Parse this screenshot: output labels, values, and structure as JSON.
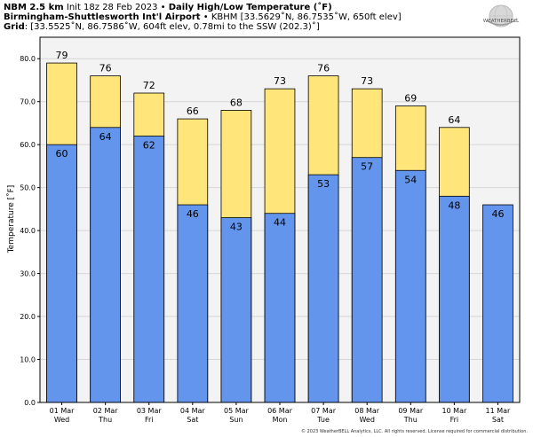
{
  "header": {
    "line1": {
      "bold1": "NBM 2.5 km",
      "text1": " Init 18z 28 Feb 2023 • ",
      "bold2": "Daily High/Low Temperature (˚F)"
    },
    "line2": {
      "bold": "Birmingham-Shuttlesworth Int'l Airport",
      "text": " • KBHM [33.5629˚N, 86.7535˚W, 650ft elev]"
    },
    "line3": {
      "bold": "Grid",
      "text": ": [33.5525˚N, 86.7586˚W, 604ft elev, 0.78mi to the SSW (202.3)˚]"
    }
  },
  "logo": {
    "word": "WEATHERBELL"
  },
  "copyright": "© 2023 WeatherBELL Analytics, LLC. All rights reserved. License required for commercial distribution.",
  "chart_data": {
    "type": "bar",
    "ylabel": "Temperature [˚F]",
    "ylim": [
      0,
      85
    ],
    "yticks": [
      0,
      10,
      20,
      30,
      40,
      50,
      60,
      70,
      80
    ],
    "ytick_labels": [
      "0.0",
      "10.0",
      "20.0",
      "30.0",
      "40.0",
      "50.0",
      "60.0",
      "70.0",
      "80.0"
    ],
    "grid": true,
    "categories": [
      {
        "date": "01 Mar",
        "day": "Wed"
      },
      {
        "date": "02 Mar",
        "day": "Thu"
      },
      {
        "date": "03 Mar",
        "day": "Fri"
      },
      {
        "date": "04 Mar",
        "day": "Sat"
      },
      {
        "date": "05 Mar",
        "day": "Sun"
      },
      {
        "date": "06 Mar",
        "day": "Mon"
      },
      {
        "date": "07 Mar",
        "day": "Tue"
      },
      {
        "date": "08 Mar",
        "day": "Wed"
      },
      {
        "date": "09 Mar",
        "day": "Thu"
      },
      {
        "date": "10 Mar",
        "day": "Fri"
      },
      {
        "date": "11 Mar",
        "day": "Sat"
      }
    ],
    "series": [
      {
        "values": [
          79,
          76,
          72,
          66,
          68,
          73,
          76,
          73,
          69,
          64,
          null
        ],
        "labels": [
          "79",
          "76",
          "72",
          "66",
          "68",
          "73",
          "76",
          "73",
          "69",
          "64",
          ""
        ],
        "color": "#ffe57a"
      },
      {
        "values": [
          60,
          64,
          62,
          46,
          43,
          44,
          53,
          57,
          54,
          48,
          46
        ],
        "labels": [
          "60",
          "64",
          "62",
          "46",
          "43",
          "44",
          "53",
          "57",
          "54",
          "48",
          "46"
        ],
        "color": "#6495ed"
      }
    ]
  }
}
